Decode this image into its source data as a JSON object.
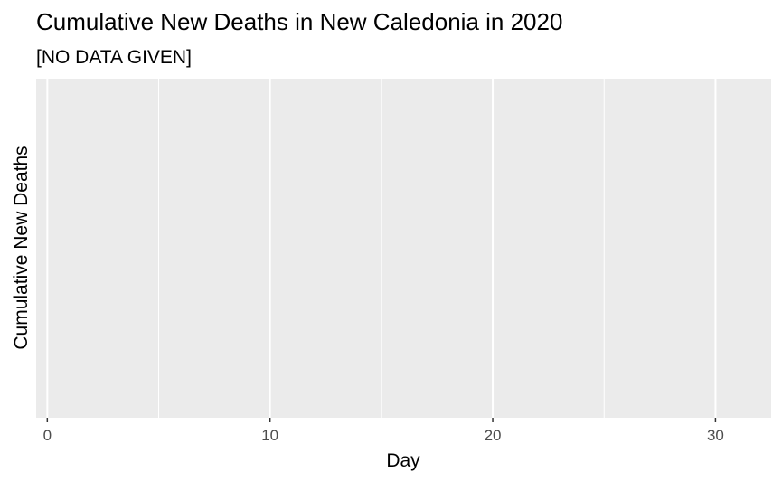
{
  "chart_data": {
    "type": "line",
    "title": "Cumulative New Deaths in New Caledonia in 2020",
    "subtitle": "[NO DATA GIVEN]",
    "xlabel": "Day",
    "ylabel": "Cumulative New Deaths",
    "x_ticks": [
      0,
      10,
      20,
      30
    ],
    "x_minor_ticks": [
      5,
      15,
      25
    ],
    "xlim": [
      -0.5,
      32.5
    ],
    "series": [],
    "grid": true,
    "panel_background": "#EBEBEB",
    "grid_color": "#FFFFFF",
    "tick_label_color": "#4D4D4D",
    "text_color": "#000000"
  }
}
